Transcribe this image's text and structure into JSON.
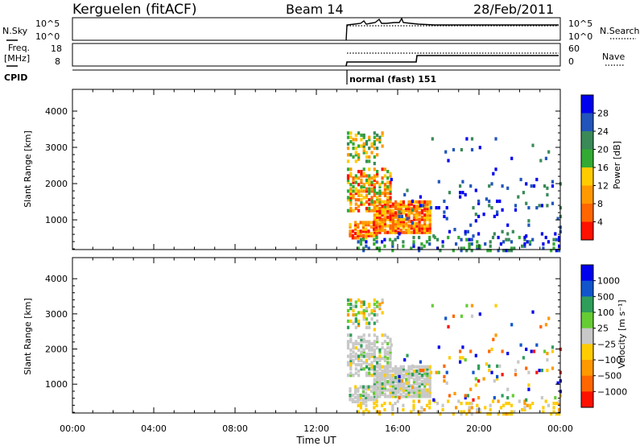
{
  "header": {
    "station": "Kerguelen (fitACF)",
    "beam": "Beam 14",
    "date": "28/Feb/2011"
  },
  "panels": {
    "noise": {
      "left_label": "N.Sky",
      "left_ticks": [
        "10^5",
        "10^0"
      ],
      "right_label": "N.Search",
      "right_ticks": [
        "10^5",
        "10^0"
      ]
    },
    "freq": {
      "left_label_line1": "Freq.",
      "left_label_line2": "[MHz]",
      "left_ticks": [
        "18",
        "8"
      ],
      "right_label": "Nave",
      "right_ticks": [
        "60",
        "0"
      ]
    },
    "cpid": {
      "label": "CPID",
      "mode_text": "normal (fast) 151"
    }
  },
  "colors": {
    "power_scale": [
      "#0000ee",
      "#2255bb",
      "#3a8a58",
      "#33aa33",
      "#ffcc00",
      "#ff9900",
      "#ff6600",
      "#ff1100"
    ],
    "velocity_scale": [
      "#ff1100",
      "#ff6600",
      "#ff9900",
      "#ffcc00",
      "#c8c8c8",
      "#66cc33",
      "#2f9e5a",
      "#1155cc",
      "#0000ee"
    ],
    "ground_scatter": "#bbbbbb"
  },
  "chart_data": [
    {
      "type": "heatmap",
      "title": "Power",
      "xlabel": "Time UT",
      "ylabel": "Slant Range [km]",
      "x_ticks": [
        "00:00",
        "04:00",
        "08:00",
        "12:00",
        "16:00",
        "20:00",
        "00:00"
      ],
      "xlim_hours": [
        0,
        24
      ],
      "y_ticks": [
        1000,
        2000,
        3000,
        4000
      ],
      "ylim_km": [
        180,
        4600
      ],
      "colorbar": {
        "label": "Power [dB]",
        "ticks": [
          4,
          8,
          12,
          16,
          20,
          24,
          28
        ],
        "range": [
          0,
          32
        ]
      },
      "data_start_hour": 13.5
    },
    {
      "type": "heatmap",
      "title": "Velocity",
      "xlabel": "Time UT",
      "ylabel": "Slant Range [km]",
      "x_ticks": [
        "00:00",
        "04:00",
        "08:00",
        "12:00",
        "16:00",
        "20:00",
        "00:00"
      ],
      "xlim_hours": [
        0,
        24
      ],
      "y_ticks": [
        1000,
        2000,
        3000,
        4000
      ],
      "ylim_km": [
        180,
        4600
      ],
      "colorbar": {
        "label": "Velocity [m s⁻¹]",
        "ticks": [
          "1000",
          "500",
          "100",
          "25",
          "−25",
          "−100",
          "−500",
          "−1000"
        ]
      },
      "data_start_hour": 13.5
    }
  ]
}
